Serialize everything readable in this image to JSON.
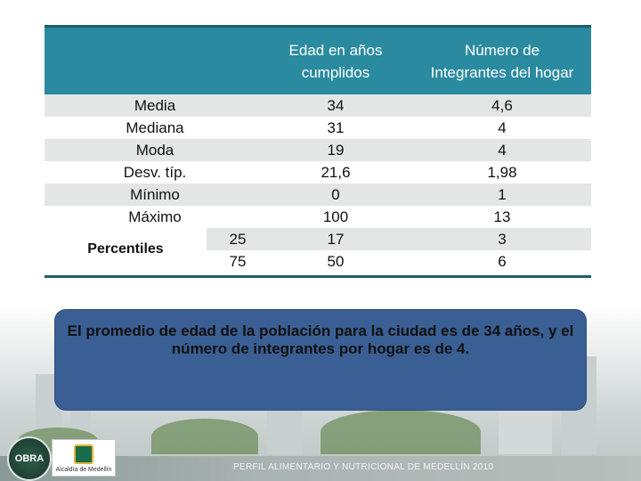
{
  "table": {
    "headers": {
      "age_line1": "Edad en años",
      "age_line2": "cumplidos",
      "num_line1": "Número de",
      "num_line2": "Integrantes del hogar"
    },
    "rows": [
      {
        "label": "Media",
        "age": "34",
        "num": "4,6"
      },
      {
        "label": "Mediana",
        "age": "31",
        "num": "4"
      },
      {
        "label": "Moda",
        "age": "19",
        "num": "4"
      },
      {
        "label": "Desv. típ.",
        "age": "21,6",
        "num": "1,98"
      },
      {
        "label": "Mínimo",
        "age": "0",
        "num": "1"
      },
      {
        "label": "Máximo",
        "age": "100",
        "num": "13"
      }
    ],
    "percentiles": {
      "label": "Percentiles",
      "rows": [
        {
          "p": "25",
          "age": "17",
          "num": "3"
        },
        {
          "p": "75",
          "age": "50",
          "num": "6"
        }
      ]
    }
  },
  "note": {
    "text": "El promedio de edad de la población para la ciudad es de 34 años, y el número de integrantes por hogar es de 4."
  },
  "footer": {
    "title": "PERFIL ALIMENTARIO Y NUTRICIONAL DE MEDELLÍN 2010",
    "logo_badge": "OBRA",
    "logo_alcaldia": "Alcaldía de Medellín"
  },
  "colors": {
    "header_bg": "#2a8aa0",
    "note_bg": "#3a5f94",
    "row_shade": "#e4e6e6"
  }
}
